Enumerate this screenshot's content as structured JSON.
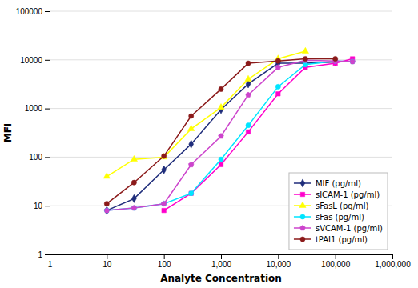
{
  "chart_data": {
    "type": "line",
    "xlabel": "Analyte Concentration",
    "ylabel": "MFI",
    "log": true,
    "grid": "y",
    "legend": "lower right",
    "xlim": [
      1,
      1000000
    ],
    "ylim": [
      1,
      100000
    ],
    "xticks": [
      1,
      10,
      100,
      {
        "value": 1000,
        "label": "1,000"
      },
      {
        "value": 10000,
        "label": "10,000"
      },
      {
        "value": 100000,
        "label": "100,000"
      },
      {
        "value": 1000000,
        "label": "1,000,000"
      }
    ],
    "yticks": [
      1,
      10,
      100,
      1000,
      10000,
      100000
    ],
    "series": [
      {
        "name": "MIF (pg/ml)",
        "color": "#1F2D7B",
        "marker": "diamond",
        "x": [
          10,
          30,
          100,
          300,
          1000,
          3000,
          10000,
          30000,
          100000
        ],
        "values": [
          8,
          14,
          55,
          185,
          950,
          3200,
          8500,
          8500,
          9000
        ]
      },
      {
        "name": "sICAM-1 (pg/ml)",
        "color": "#FF00CC",
        "marker": "square",
        "x": [
          100,
          300,
          1000,
          3000,
          10000,
          30000,
          100000,
          200000
        ],
        "values": [
          8,
          18,
          70,
          330,
          2000,
          7000,
          8500,
          10500
        ]
      },
      {
        "name": "sFasL (pg/ml)",
        "color": "#FFFF00",
        "marker": "triangle-up",
        "x": [
          10,
          30,
          100,
          300,
          1000,
          3000,
          10000,
          30000
        ],
        "values": [
          40,
          90,
          100,
          380,
          1050,
          4000,
          10500,
          15000
        ]
      },
      {
        "name": "sFas (pg/ml)",
        "color": "#00E5FF",
        "marker": "circle",
        "x": [
          10,
          30,
          100,
          300,
          1000,
          3000,
          10000,
          30000,
          100000,
          200000
        ],
        "values": [
          8,
          9,
          11,
          18,
          90,
          450,
          2800,
          8000,
          9500,
          9200
        ]
      },
      {
        "name": "sVCAM-1 (pg/ml)",
        "color": "#CC44CC",
        "marker": "pentagon",
        "x": [
          10,
          30,
          100,
          300,
          1000,
          3000,
          10000,
          30000,
          100000,
          200000
        ],
        "values": [
          8,
          9,
          11,
          70,
          270,
          1900,
          7000,
          9800,
          9500,
          9200
        ]
      },
      {
        "name": "tPAI1 (pg/ml)",
        "color": "#8B1A1A",
        "marker": "circle",
        "x": [
          10,
          30,
          100,
          300,
          1000,
          3000,
          10000,
          30000,
          100000
        ],
        "values": [
          11,
          30,
          105,
          700,
          2500,
          8500,
          9500,
          10500,
          10500
        ]
      }
    ]
  }
}
